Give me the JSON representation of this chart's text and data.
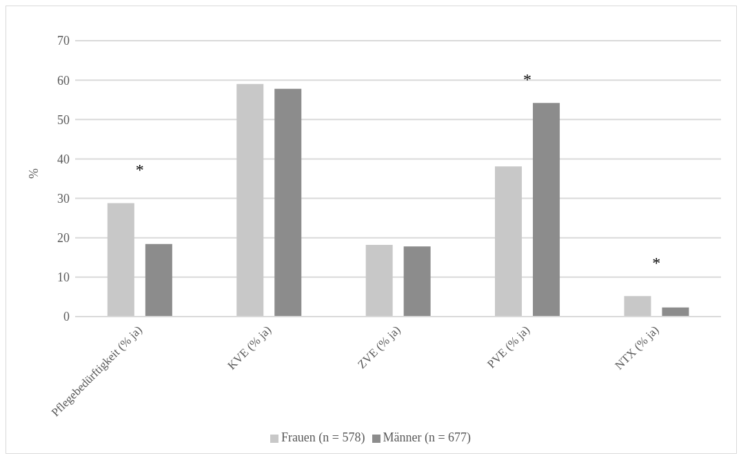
{
  "chart_data": {
    "type": "bar",
    "ylabel": "%",
    "categories": [
      "Pflegebedürftigkeit (% ja)",
      "KVE (% ja)",
      "ZVE (% ja)",
      "PVE (% ja)",
      "NTX (% ja)"
    ],
    "series": [
      {
        "name": "Frauen (n = 578)",
        "color": "#c8c8c8",
        "values": [
          28.8,
          59.0,
          18.2,
          38.1,
          5.2
        ]
      },
      {
        "name": "Männer (n = 677)",
        "color": "#8c8c8c",
        "values": [
          18.4,
          57.8,
          17.8,
          54.2,
          2.3
        ]
      }
    ],
    "ylim": [
      0,
      70
    ],
    "yticks": [
      0,
      10,
      20,
      30,
      40,
      50,
      60,
      70
    ],
    "grid": "y",
    "legend": "bottom",
    "annotations": [
      "*",
      "*",
      "*"
    ]
  }
}
